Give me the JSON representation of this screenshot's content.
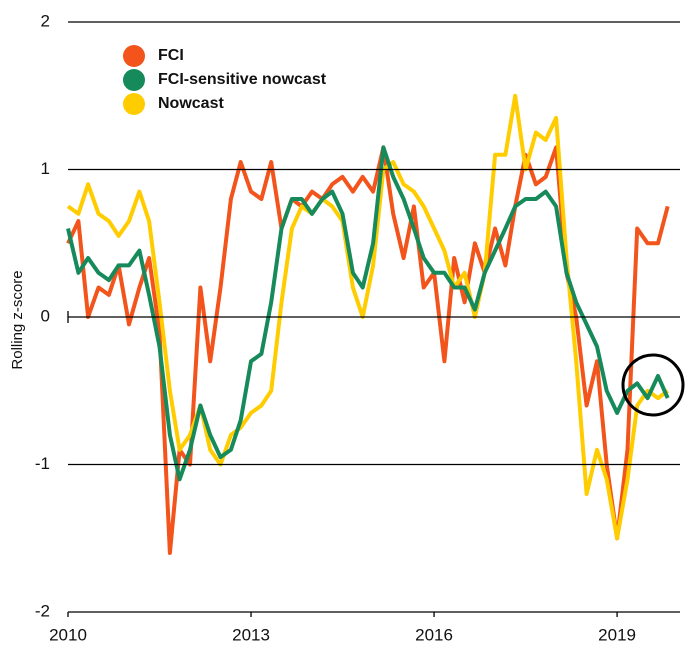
{
  "chart_data": {
    "type": "line",
    "ylabel": "Rolling z-score",
    "x": [
      2010,
      2010.17,
      2010.33,
      2010.5,
      2010.67,
      2010.83,
      2011,
      2011.17,
      2011.33,
      2011.5,
      2011.67,
      2011.83,
      2012,
      2012.17,
      2012.33,
      2012.5,
      2012.67,
      2012.83,
      2013,
      2013.17,
      2013.33,
      2013.5,
      2013.67,
      2013.83,
      2014,
      2014.17,
      2014.33,
      2014.5,
      2014.67,
      2014.83,
      2015,
      2015.17,
      2015.33,
      2015.5,
      2015.67,
      2015.83,
      2016,
      2016.17,
      2016.33,
      2016.5,
      2016.67,
      2016.83,
      2017,
      2017.17,
      2017.33,
      2017.5,
      2017.67,
      2017.83,
      2018,
      2018.17,
      2018.33,
      2018.5,
      2018.67,
      2018.83,
      2019,
      2019.17,
      2019.33,
      2019.5,
      2019.67,
      2019.83
    ],
    "series": [
      {
        "name": "FCI",
        "color": "#f2541b",
        "values": [
          0.5,
          0.65,
          0.0,
          0.2,
          0.15,
          0.35,
          -0.05,
          0.2,
          0.4,
          -0.1,
          -1.6,
          -0.9,
          -1.0,
          0.2,
          -0.3,
          0.2,
          0.8,
          1.05,
          0.85,
          0.8,
          1.05,
          0.6,
          0.8,
          0.75,
          0.85,
          0.8,
          0.9,
          0.95,
          0.85,
          0.95,
          0.85,
          1.15,
          0.7,
          0.4,
          0.75,
          0.2,
          0.3,
          -0.3,
          0.4,
          0.1,
          0.5,
          0.3,
          0.6,
          0.35,
          0.75,
          1.1,
          0.9,
          0.95,
          1.15,
          0.3,
          0.0,
          -0.6,
          -0.3,
          -1.0,
          -1.5,
          -0.9,
          0.6,
          0.5,
          0.5,
          0.75
        ]
      },
      {
        "name": "FCI-sensitive nowcast",
        "color": "#168a5a",
        "values": [
          0.6,
          0.3,
          0.4,
          0.3,
          0.25,
          0.35,
          0.35,
          0.45,
          0.15,
          -0.2,
          -0.8,
          -1.1,
          -0.9,
          -0.6,
          -0.8,
          -0.95,
          -0.9,
          -0.7,
          -0.3,
          -0.25,
          0.1,
          0.6,
          0.8,
          0.8,
          0.7,
          0.8,
          0.85,
          0.7,
          0.3,
          0.2,
          0.5,
          1.15,
          0.95,
          0.8,
          0.6,
          0.4,
          0.3,
          0.3,
          0.2,
          0.2,
          0.05,
          0.3,
          0.45,
          0.6,
          0.75,
          0.8,
          0.8,
          0.85,
          0.75,
          0.3,
          0.1,
          -0.05,
          -0.2,
          -0.5,
          -0.65,
          -0.5,
          -0.45,
          -0.55,
          -0.4,
          -0.55
        ]
      },
      {
        "name": "Nowcast",
        "color": "#ffcc00",
        "values": [
          0.75,
          0.7,
          0.9,
          0.7,
          0.65,
          0.55,
          0.65,
          0.85,
          0.65,
          0.1,
          -0.5,
          -0.9,
          -0.8,
          -0.6,
          -0.9,
          -1.0,
          -0.8,
          -0.75,
          -0.65,
          -0.6,
          -0.5,
          0.1,
          0.6,
          0.75,
          0.7,
          0.8,
          0.75,
          0.65,
          0.2,
          0.0,
          0.35,
          1.0,
          1.05,
          0.9,
          0.85,
          0.75,
          0.6,
          0.45,
          0.2,
          0.3,
          0.0,
          0.3,
          1.1,
          1.1,
          1.5,
          1.0,
          1.25,
          1.2,
          1.35,
          0.4,
          -0.3,
          -1.2,
          -0.9,
          -1.1,
          -1.5,
          -1.1,
          -0.6,
          -0.5,
          -0.55,
          -0.5
        ]
      }
    ],
    "xlim": [
      2010,
      2019.9
    ],
    "xticks": [
      2010,
      2013,
      2016,
      2019
    ],
    "ylim": [
      -2,
      2
    ],
    "yticks": [
      -2,
      -1,
      0,
      1,
      2
    ],
    "grid": true
  }
}
